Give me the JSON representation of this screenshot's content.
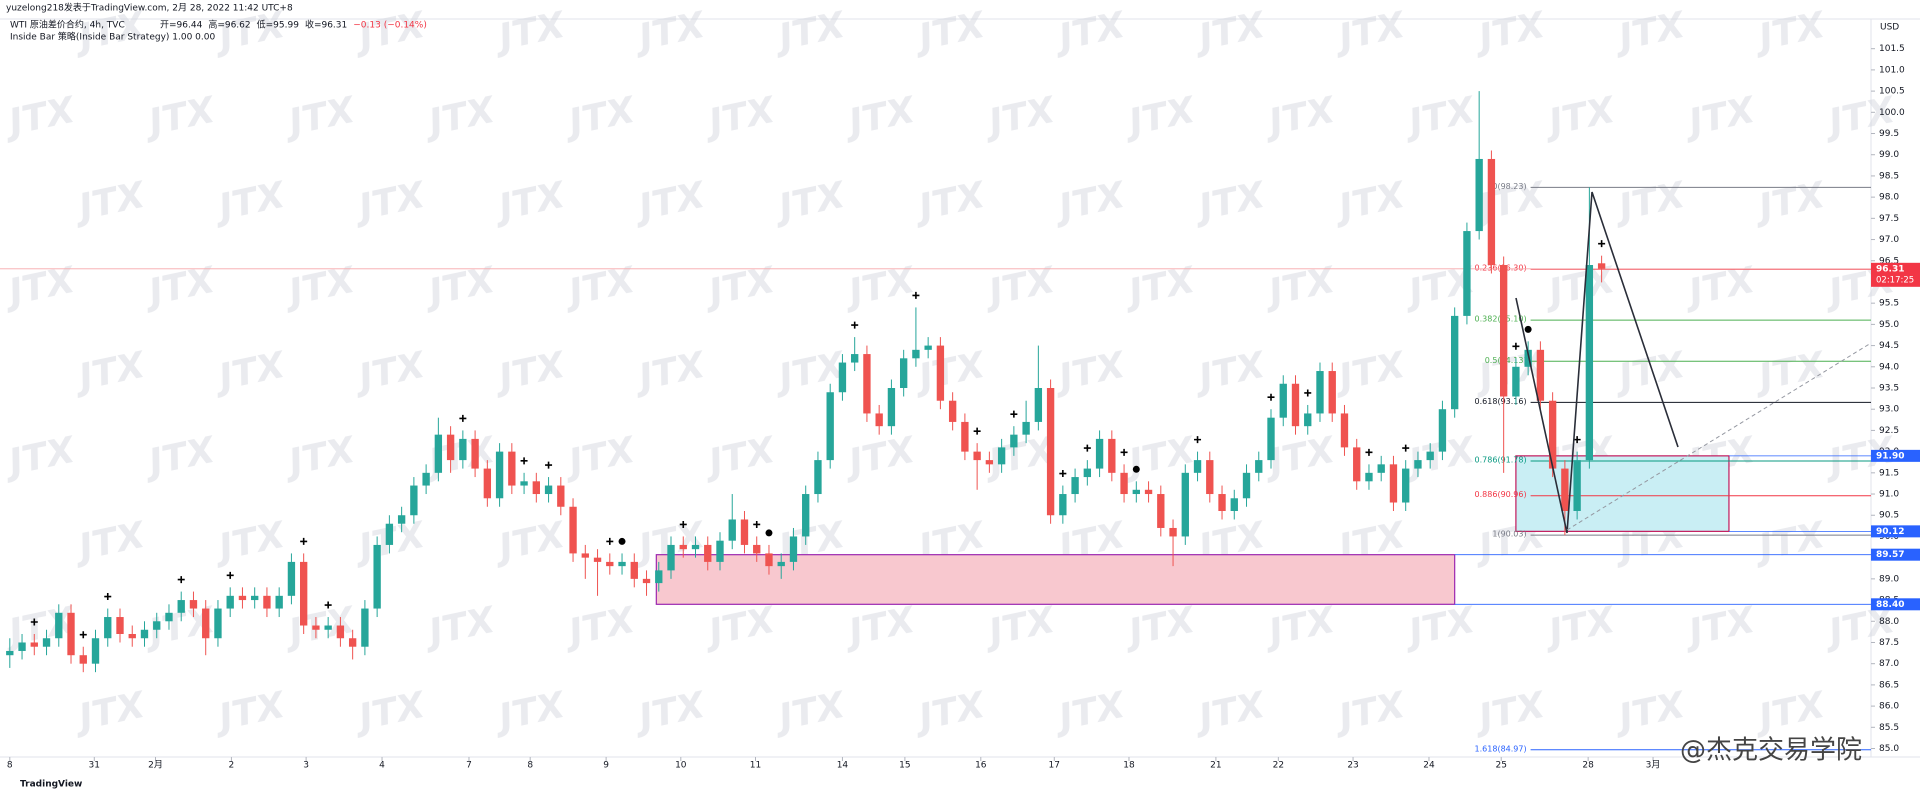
{
  "chart_data": {
    "type": "candlestick",
    "header": {
      "author": "yuzelong218发表于TradingView.com,   2月 28, 2022 11:42 UTC+8",
      "symbol": "WTI 原油差价合约, 4h, TVC",
      "quote": [
        "开=96.44",
        "高=96.62",
        "低=95.99",
        "收=96.31",
        "−0.13 (−0.14%)"
      ],
      "strategy": "Inside Bar 策略(Inside Bar Strategy)  1.00  0.00"
    },
    "currency": "USD",
    "countdown": "02:17:25",
    "watermark": "JTX",
    "brand": "TradingView",
    "credit": "@杰克交易学院",
    "up_color": "#26a69a",
    "down_color": "#ef5350",
    "xlim": [
      -0.8,
      152
    ],
    "ylim": [
      84.8,
      102.2
    ],
    "xticks": [
      {
        "value": 0,
        "label": "8"
      },
      {
        "value": 6.9,
        "label": "31"
      },
      {
        "value": 11.9,
        "label": "2月"
      },
      {
        "value": 18.1,
        "label": "2"
      },
      {
        "value": 24.2,
        "label": "3"
      },
      {
        "value": 30.4,
        "label": "4"
      },
      {
        "value": 37.5,
        "label": "7"
      },
      {
        "value": 42.5,
        "label": "8"
      },
      {
        "value": 48.7,
        "label": "9"
      },
      {
        "value": 54.8,
        "label": "10"
      },
      {
        "value": 60.9,
        "label": "11"
      },
      {
        "value": 68,
        "label": "14"
      },
      {
        "value": 73.1,
        "label": "15"
      },
      {
        "value": 79.3,
        "label": "16"
      },
      {
        "value": 85.3,
        "label": "17"
      },
      {
        "value": 91.4,
        "label": "18"
      },
      {
        "value": 98.5,
        "label": "21"
      },
      {
        "value": 103.6,
        "label": "22"
      },
      {
        "value": 109.7,
        "label": "23"
      },
      {
        "value": 115.9,
        "label": "24"
      },
      {
        "value": 121.8,
        "label": "25"
      },
      {
        "value": 128.9,
        "label": "28"
      },
      {
        "value": 134.2,
        "label": "3月"
      }
    ],
    "yticks": [
      {
        "value": 85,
        "label": "85.0"
      },
      85.5,
      {
        "value": 86,
        "label": "86.0"
      },
      86.5,
      {
        "value": 87,
        "label": "87.0"
      },
      87.5,
      {
        "value": 88,
        "label": "88.0"
      },
      88.5,
      {
        "value": 89,
        "label": "89.0"
      },
      89.5,
      {
        "value": 90,
        "label": "90.0"
      },
      90.5,
      {
        "value": 91,
        "label": "91.0"
      },
      91.5,
      {
        "value": 92,
        "label": "92.0"
      },
      92.5,
      {
        "value": 93,
        "label": "93.0"
      },
      93.5,
      {
        "value": 94,
        "label": "94.0"
      },
      94.5,
      {
        "value": 95,
        "label": "95.0"
      },
      95.5,
      {
        "value": 96,
        "label": "96.0"
      },
      96.5,
      {
        "value": 97,
        "label": "97.0"
      },
      97.5,
      {
        "value": 98,
        "label": "98.0"
      },
      98.5,
      {
        "value": 99,
        "label": "99.0"
      },
      99.5,
      {
        "value": 100,
        "label": "100.0"
      },
      100.5,
      {
        "value": 101,
        "label": "101.0"
      },
      101.5
    ],
    "candles": [
      [
        87.2,
        87.6,
        86.9,
        87.3
      ],
      [
        87.3,
        87.7,
        87.1,
        87.5
      ],
      [
        87.5,
        87.7,
        87.2,
        87.4
      ],
      [
        87.4,
        87.8,
        87.2,
        87.6
      ],
      [
        87.6,
        88.4,
        87.4,
        88.2
      ],
      [
        88.2,
        88.4,
        87.0,
        87.2
      ],
      [
        87.2,
        87.4,
        86.8,
        87.0
      ],
      [
        87.0,
        87.8,
        86.8,
        87.6
      ],
      [
        87.6,
        88.3,
        87.4,
        88.1
      ],
      [
        88.1,
        88.3,
        87.5,
        87.7
      ],
      [
        87.7,
        87.9,
        87.4,
        87.6
      ],
      [
        87.6,
        88.0,
        87.4,
        87.8
      ],
      [
        87.8,
        88.2,
        87.6,
        88.0
      ],
      [
        88.0,
        88.4,
        87.8,
        88.2
      ],
      [
        88.2,
        88.7,
        88.0,
        88.5
      ],
      [
        88.5,
        88.7,
        88.1,
        88.3
      ],
      [
        88.3,
        88.5,
        87.2,
        87.6
      ],
      [
        87.6,
        88.5,
        87.4,
        88.3
      ],
      [
        88.3,
        88.8,
        88.1,
        88.6
      ],
      [
        88.6,
        88.8,
        88.3,
        88.5
      ],
      [
        88.5,
        88.8,
        88.3,
        88.6
      ],
      [
        88.6,
        88.8,
        88.1,
        88.3
      ],
      [
        88.3,
        88.8,
        88.1,
        88.6
      ],
      [
        88.6,
        89.6,
        88.4,
        89.4
      ],
      [
        89.4,
        89.6,
        87.7,
        87.9
      ],
      [
        87.9,
        88.1,
        87.6,
        87.8
      ],
      [
        87.8,
        88.1,
        87.6,
        87.9
      ],
      [
        87.9,
        88.1,
        87.4,
        87.6
      ],
      [
        87.6,
        87.8,
        87.1,
        87.4
      ],
      [
        87.4,
        88.5,
        87.2,
        88.3
      ],
      [
        88.3,
        90.0,
        88.1,
        89.8
      ],
      [
        89.8,
        90.5,
        89.6,
        90.3
      ],
      [
        90.3,
        90.7,
        90.1,
        90.5
      ],
      [
        90.5,
        91.4,
        90.3,
        91.2
      ],
      [
        91.2,
        91.7,
        91.0,
        91.5
      ],
      [
        91.5,
        92.8,
        91.3,
        92.4
      ],
      [
        92.4,
        92.6,
        91.5,
        91.8
      ],
      [
        91.8,
        92.5,
        91.6,
        92.3
      ],
      [
        92.3,
        92.5,
        91.4,
        91.6
      ],
      [
        91.6,
        91.8,
        90.7,
        90.9
      ],
      [
        90.9,
        92.2,
        90.7,
        92.0
      ],
      [
        92.0,
        92.2,
        91.0,
        91.2
      ],
      [
        91.2,
        91.5,
        91.0,
        91.3
      ],
      [
        91.3,
        91.5,
        90.8,
        91.0
      ],
      [
        91.0,
        91.4,
        90.8,
        91.2
      ],
      [
        91.2,
        91.4,
        90.5,
        90.7
      ],
      [
        90.7,
        90.9,
        89.4,
        89.6
      ],
      [
        89.6,
        89.8,
        89.0,
        89.5
      ],
      [
        89.5,
        89.7,
        88.6,
        89.4
      ],
      [
        89.4,
        89.6,
        89.1,
        89.3
      ],
      [
        89.3,
        89.6,
        89.1,
        89.4
      ],
      [
        89.4,
        89.6,
        88.8,
        89.0
      ],
      [
        89.0,
        89.2,
        88.6,
        88.9
      ],
      [
        88.9,
        89.4,
        88.7,
        89.2
      ],
      [
        89.2,
        90.0,
        89.0,
        89.8
      ],
      [
        89.8,
        90.0,
        89.5,
        89.7
      ],
      [
        89.7,
        90.0,
        89.5,
        89.8
      ],
      [
        89.8,
        90.0,
        89.2,
        89.4
      ],
      [
        89.4,
        90.1,
        89.2,
        89.9
      ],
      [
        89.9,
        91.0,
        89.7,
        90.4
      ],
      [
        90.4,
        90.6,
        89.6,
        89.8
      ],
      [
        89.8,
        90.0,
        89.4,
        89.6
      ],
      [
        89.6,
        89.8,
        89.1,
        89.3
      ],
      [
        89.3,
        89.6,
        89.0,
        89.4
      ],
      [
        89.4,
        90.2,
        89.2,
        90.0
      ],
      [
        90.0,
        91.2,
        89.8,
        91.0
      ],
      [
        91.0,
        92.0,
        90.8,
        91.8
      ],
      [
        91.8,
        93.6,
        91.6,
        93.4
      ],
      [
        93.4,
        94.3,
        93.2,
        94.1
      ],
      [
        94.1,
        94.7,
        93.9,
        94.3
      ],
      [
        94.3,
        94.5,
        92.7,
        92.9
      ],
      [
        92.9,
        93.1,
        92.4,
        92.6
      ],
      [
        92.6,
        93.7,
        92.4,
        93.5
      ],
      [
        93.5,
        94.4,
        93.3,
        94.2
      ],
      [
        94.2,
        95.4,
        94.0,
        94.4
      ],
      [
        94.4,
        94.7,
        94.2,
        94.5
      ],
      [
        94.5,
        94.7,
        93.0,
        93.2
      ],
      [
        93.2,
        93.4,
        92.5,
        92.7
      ],
      [
        92.7,
        92.9,
        91.8,
        92.0
      ],
      [
        92.0,
        92.2,
        91.1,
        91.8
      ],
      [
        91.8,
        92.0,
        91.5,
        91.7
      ],
      [
        91.7,
        92.3,
        91.5,
        92.1
      ],
      [
        92.1,
        92.6,
        91.9,
        92.4
      ],
      [
        92.4,
        93.2,
        92.2,
        92.7
      ],
      [
        92.7,
        94.5,
        92.5,
        93.5
      ],
      [
        93.5,
        93.7,
        90.3,
        90.5
      ],
      [
        90.5,
        91.2,
        90.3,
        91.0
      ],
      [
        91.0,
        91.6,
        90.8,
        91.4
      ],
      [
        91.4,
        91.8,
        91.2,
        91.6
      ],
      [
        91.6,
        92.5,
        91.4,
        92.3
      ],
      [
        92.3,
        92.5,
        91.3,
        91.5
      ],
      [
        91.5,
        91.7,
        90.8,
        91.0
      ],
      [
        91.0,
        91.3,
        90.8,
        91.1
      ],
      [
        91.1,
        91.3,
        90.8,
        91.0
      ],
      [
        91.0,
        91.2,
        90.0,
        90.2
      ],
      [
        90.2,
        90.4,
        89.3,
        90.0
      ],
      [
        90.0,
        91.7,
        89.8,
        91.5
      ],
      [
        91.5,
        92.0,
        91.3,
        91.8
      ],
      [
        91.8,
        92.0,
        90.8,
        91.0
      ],
      [
        91.0,
        91.2,
        90.4,
        90.6
      ],
      [
        90.6,
        91.1,
        90.4,
        90.9
      ],
      [
        90.9,
        91.7,
        90.7,
        91.5
      ],
      [
        91.5,
        92.0,
        91.3,
        91.8
      ],
      [
        91.8,
        93.0,
        91.6,
        92.8
      ],
      [
        92.8,
        93.8,
        92.6,
        93.6
      ],
      [
        93.6,
        93.8,
        92.4,
        92.6
      ],
      [
        92.6,
        93.1,
        92.4,
        92.9
      ],
      [
        92.9,
        94.1,
        92.7,
        93.9
      ],
      [
        93.9,
        94.1,
        92.7,
        92.9
      ],
      [
        92.9,
        93.1,
        91.9,
        92.1
      ],
      [
        92.1,
        92.3,
        91.1,
        91.3
      ],
      [
        91.3,
        91.7,
        91.1,
        91.5
      ],
      [
        91.5,
        91.9,
        91.3,
        91.7
      ],
      [
        91.7,
        91.9,
        90.6,
        90.8
      ],
      [
        90.8,
        91.8,
        90.6,
        91.6
      ],
      [
        91.6,
        92.0,
        91.4,
        91.8
      ],
      [
        91.8,
        92.2,
        91.6,
        92.0
      ],
      [
        92.0,
        93.2,
        91.8,
        93.0
      ],
      [
        93.0,
        95.4,
        92.8,
        95.2
      ],
      [
        95.2,
        97.4,
        95.0,
        97.2
      ],
      [
        97.2,
        100.5,
        97.0,
        98.9
      ],
      [
        98.9,
        99.1,
        96.2,
        96.4
      ],
      [
        96.4,
        96.6,
        91.5,
        93.3
      ],
      [
        93.3,
        94.2,
        93.1,
        94.0
      ],
      [
        94.0,
        94.6,
        93.8,
        94.4
      ],
      [
        94.4,
        94.6,
        93.0,
        93.2
      ],
      [
        93.2,
        93.4,
        91.4,
        91.6
      ],
      [
        91.6,
        91.8,
        90.03,
        90.6
      ],
      [
        90.6,
        92.0,
        90.4,
        91.8
      ],
      [
        91.8,
        98.23,
        91.6,
        96.4
      ],
      [
        96.44,
        96.62,
        95.99,
        96.31
      ]
    ],
    "signals": {
      "plus": [
        2,
        6,
        8,
        14,
        18,
        24,
        26,
        37,
        42,
        44,
        49,
        55,
        61,
        69,
        74,
        79,
        82,
        86,
        88,
        91,
        97,
        103,
        106,
        111,
        114,
        123,
        128,
        130
      ],
      "dot": [
        50,
        62,
        92,
        124
      ]
    },
    "zones": [
      {
        "from": 52.8,
        "to": 118,
        "low": 88.4,
        "high": 89.57,
        "fill": "#f8c8cf",
        "border": "#9c27b0"
      },
      {
        "from": 123,
        "to": 140.4,
        "low": 90.12,
        "high": 91.9,
        "fill": "#c9eef4",
        "border": "#c2185b"
      }
    ],
    "fib": {
      "from": 124.2,
      "levels": [
        {
          "label": "0(98.23)",
          "price": 98.23,
          "color": "#787b86"
        },
        {
          "label": "0.236(96.30)",
          "price": 96.3,
          "color": "#f23645"
        },
        {
          "label": "0.382(95.10)",
          "price": 95.1,
          "color": "#4caf50"
        },
        {
          "label": "0.5(94.13)",
          "price": 94.13,
          "color": "#4caf50"
        },
        {
          "label": "0.618(93.16)",
          "price": 93.16,
          "color": "#131722"
        },
        {
          "label": "0.786(91.78)",
          "price": 91.78,
          "color": "#089981"
        },
        {
          "label": "0.886(90.96)",
          "price": 90.96,
          "color": "#f23645"
        },
        {
          "label": "1(90.03)",
          "price": 90.03,
          "color": "#787b86"
        },
        {
          "label": "1.618(84.97)",
          "price": 84.97,
          "color": "#2962ff"
        }
      ]
    },
    "price_tags": [
      {
        "price": 96.31,
        "color": "#f23645"
      },
      {
        "price": {
          "value": 91.9,
          "label": "91.90"
        },
        "color": "#2962ff"
      },
      {
        "price": 90.12,
        "color": "#2962ff"
      },
      {
        "price": 89.57,
        "color": "#2962ff"
      },
      {
        "price": {
          "value": 88.4,
          "label": "88.40"
        },
        "color": "#2962ff"
      }
    ]
  }
}
